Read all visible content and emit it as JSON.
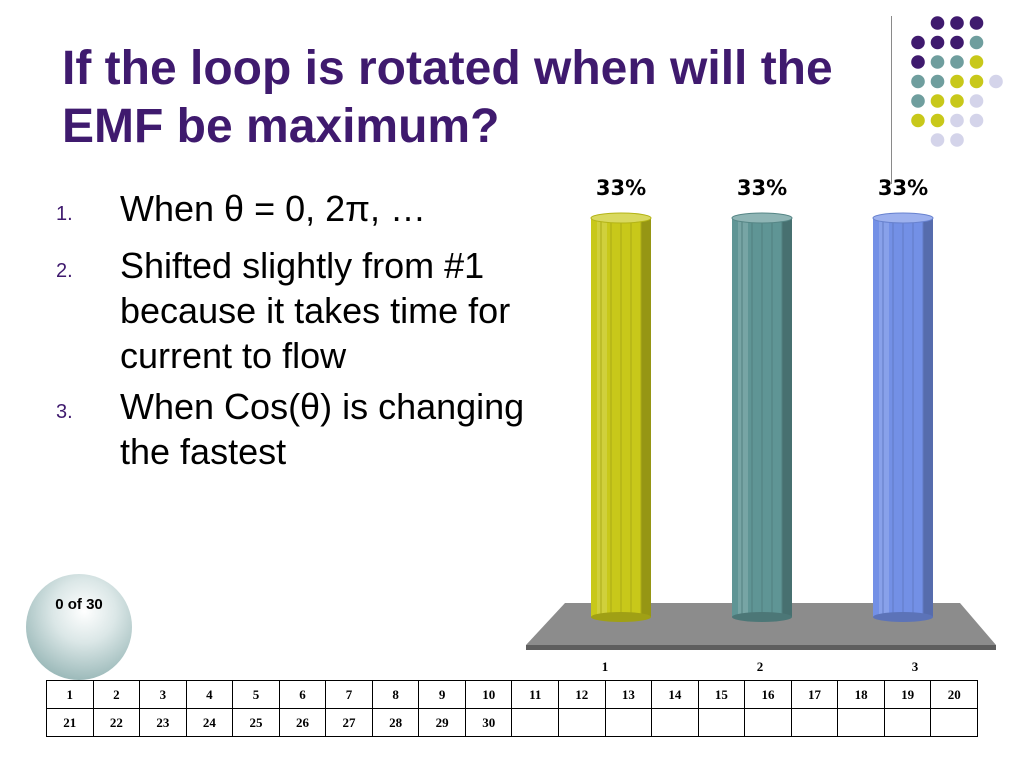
{
  "slide": {
    "title": "If the loop is rotated when will the EMF be maximum?",
    "options": [
      {
        "number": "1.",
        "text": "When θ = 0, 2π, …"
      },
      {
        "number": "2.",
        "text": "Shifted slightly from #1 because it takes time for current to flow"
      },
      {
        "number": "3.",
        "text": "When Cos(θ) is changing the fastest"
      }
    ],
    "response_counter": "0 of 30"
  },
  "chart_data": {
    "type": "bar",
    "style": "3d-cylinder",
    "categories": [
      "1",
      "2",
      "3"
    ],
    "values": [
      33,
      33,
      33
    ],
    "value_labels": [
      "33%",
      "33%",
      "33%"
    ],
    "colors": [
      "#c8c81a",
      "#5f9595",
      "#7390e6"
    ],
    "ylim": [
      0,
      33
    ],
    "grid": false,
    "legend": "none"
  },
  "participant_grid": {
    "rows": [
      [
        "1",
        "2",
        "3",
        "4",
        "5",
        "6",
        "7",
        "8",
        "9",
        "10",
        "11",
        "12",
        "13",
        "14",
        "15",
        "16",
        "17",
        "18",
        "19",
        "20"
      ],
      [
        "21",
        "22",
        "23",
        "24",
        "25",
        "26",
        "27",
        "28",
        "29",
        "30",
        "",
        "",
        "",
        "",
        "",
        "",
        "",
        "",
        "",
        ""
      ]
    ]
  },
  "theme": {
    "dot_colors": {
      "purple": "#3f1a6e",
      "teal": "#6f9e9e",
      "olive": "#c8c81a",
      "lavender": "#d4d4ea"
    }
  }
}
